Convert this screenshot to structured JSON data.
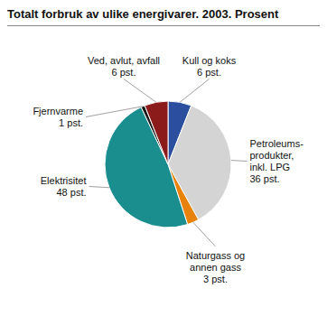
{
  "chart_data": {
    "type": "pie",
    "title": "Totalt forbruk av ulike energivarer. 2003. Prosent",
    "categories": [
      "Kull og koks\n6 pst.",
      "Petroleums-\nprodukter,\ninkl. LPG\n36 pst.",
      "Naturgass og\nannen gass\n3 pst.",
      "Elektrisitet\n48 pst.",
      "Fjernvarme\n1 pst.",
      "Ved, avlut, avfall\n6 pst."
    ],
    "values": [
      6,
      36,
      3,
      48,
      1,
      6
    ],
    "colors": [
      "#2b4f9e",
      "#d4d4d4",
      "#e8820a",
      "#1a8e8e",
      "#1a1a1a",
      "#8b1a1a"
    ]
  }
}
